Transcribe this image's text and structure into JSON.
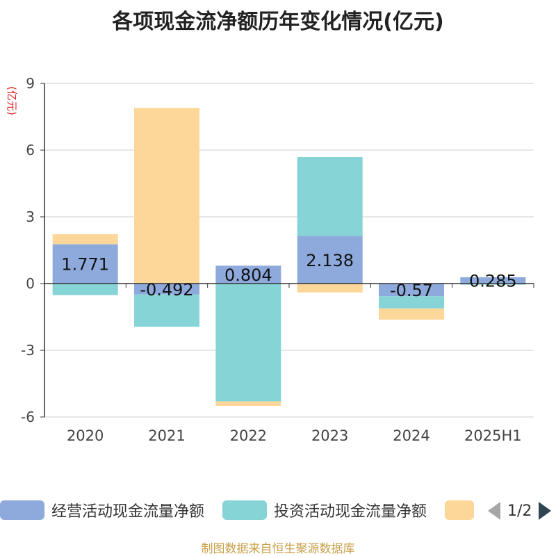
{
  "title": "各项现金流净额历年变化情况(亿元)",
  "source": "制图数据来自恒生聚源数据库",
  "legend": {
    "items": [
      {
        "label": "经营活动现金流量净额",
        "color": "#8eaadc"
      },
      {
        "label": "投资活动现金流量净额",
        "color": "#86d4d6"
      },
      {
        "label": "",
        "color": "#fdd799"
      }
    ],
    "page": "1/2"
  },
  "chart_data": {
    "type": "bar",
    "stacked": true,
    "categories": [
      "2020",
      "2021",
      "2022",
      "2023",
      "2024",
      "2025H1"
    ],
    "ylabel": "(亿元)",
    "ylim": [
      -6,
      9
    ],
    "yticks": [
      -6,
      -3,
      0,
      3,
      6,
      9
    ],
    "grid": true,
    "legend_position": "bottom",
    "series": [
      {
        "name": "经营活动现金流量净额",
        "color": "#8eaadc",
        "values": [
          1.771,
          -0.492,
          0.804,
          2.138,
          -0.57,
          0.285
        ],
        "labels_shown": true
      },
      {
        "name": "投资活动现金流量净额",
        "color": "#86d4d6",
        "values": [
          -0.52,
          -1.45,
          -5.3,
          3.55,
          -0.55,
          -0.05
        ],
        "labels_shown": false
      },
      {
        "name": "",
        "color": "#fdd799",
        "values": [
          0.45,
          7.9,
          -0.2,
          -0.4,
          -0.5,
          0.0
        ],
        "labels_shown": false
      }
    ]
  }
}
